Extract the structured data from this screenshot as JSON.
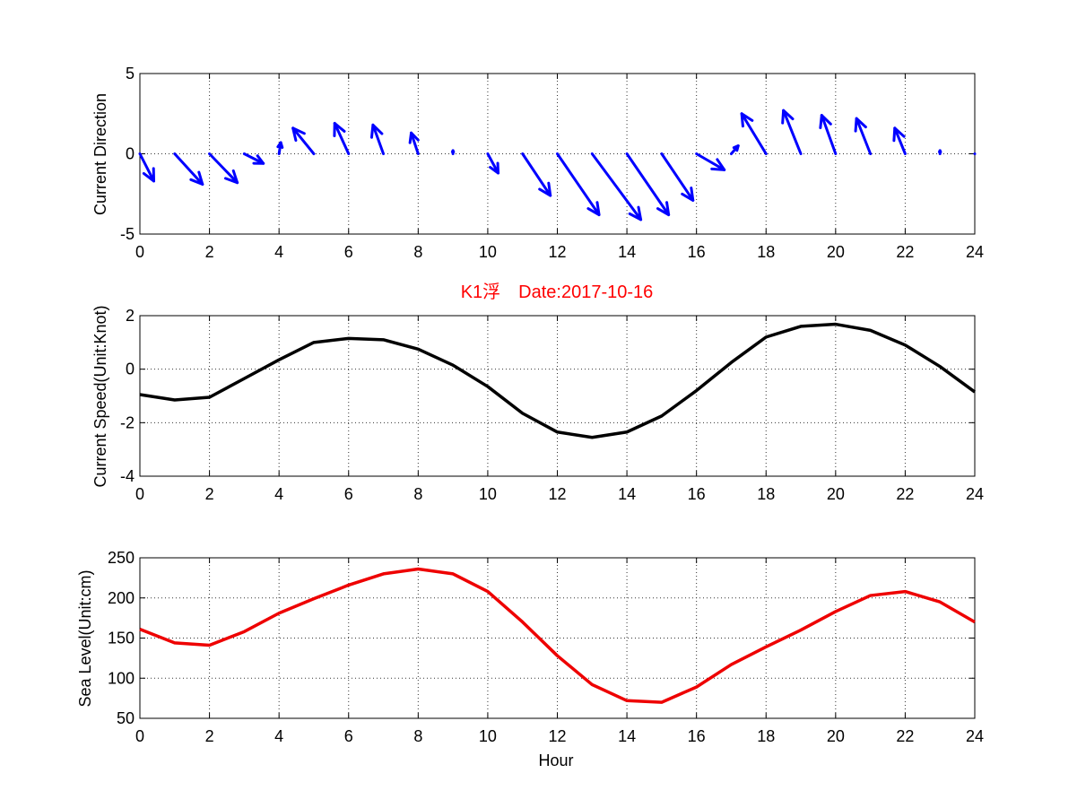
{
  "chart_data": [
    {
      "type": "quiver",
      "ylabel": "Current Direction",
      "xlim": [
        0,
        24
      ],
      "ylim": [
        -5,
        5
      ],
      "xticks": [
        "0",
        "2",
        "4",
        "6",
        "8",
        "10",
        "12",
        "14",
        "16",
        "18",
        "20",
        "22",
        "24"
      ],
      "yticks": [
        "5",
        "0",
        "-5"
      ],
      "grid": true,
      "color": "#0000ff",
      "x": [
        0,
        1,
        2,
        3,
        4,
        5,
        6,
        7,
        8,
        9,
        10,
        11,
        12,
        13,
        14,
        15,
        16,
        17,
        18,
        19,
        20,
        21,
        22,
        23,
        24
      ],
      "u": [
        0.4,
        0.8,
        0.8,
        0.55,
        0.05,
        -0.6,
        -0.4,
        -0.3,
        -0.2,
        0.0,
        0.3,
        0.8,
        1.2,
        1.4,
        1.2,
        0.9,
        0.8,
        0.2,
        -0.7,
        -0.5,
        -0.4,
        -0.4,
        -0.3,
        0.0,
        0.0
      ],
      "v": [
        -1.7,
        -1.9,
        -1.8,
        -0.6,
        0.7,
        1.6,
        1.9,
        1.8,
        1.3,
        0.2,
        -1.2,
        -2.6,
        -3.8,
        -4.1,
        -3.8,
        -2.9,
        -1.0,
        0.5,
        2.5,
        2.7,
        2.4,
        2.2,
        1.6,
        0.2,
        0.0
      ]
    },
    {
      "type": "line",
      "title": "K1浮　Date:2017-10-16",
      "title_color": "#ff0000",
      "ylabel": "Current Speed(Unit:Knot)",
      "xlim": [
        0,
        24
      ],
      "ylim": [
        -4,
        2
      ],
      "xticks": [
        "0",
        "2",
        "4",
        "6",
        "8",
        "10",
        "12",
        "14",
        "16",
        "18",
        "20",
        "22",
        "24"
      ],
      "yticks": [
        "2",
        "0",
        "-2",
        "-4"
      ],
      "grid": true,
      "color": "#000000",
      "x": [
        0,
        1,
        2,
        3,
        4,
        5,
        6,
        7,
        8,
        9,
        10,
        11,
        12,
        13,
        14,
        15,
        16,
        17,
        18,
        19,
        20,
        21,
        22,
        23,
        24
      ],
      "y": [
        -0.95,
        -1.15,
        -1.05,
        -0.35,
        0.35,
        1.0,
        1.15,
        1.1,
        0.75,
        0.15,
        -0.65,
        -1.65,
        -2.35,
        -2.55,
        -2.35,
        -1.75,
        -0.8,
        0.25,
        1.2,
        1.6,
        1.68,
        1.45,
        0.9,
        0.1,
        -0.85
      ]
    },
    {
      "type": "line",
      "ylabel": "Sea Level(Unit:cm)",
      "xlabel": "Hour",
      "xlim": [
        0,
        24
      ],
      "ylim": [
        50,
        250
      ],
      "xticks": [
        "0",
        "2",
        "4",
        "6",
        "8",
        "10",
        "12",
        "14",
        "16",
        "18",
        "20",
        "22",
        "24"
      ],
      "yticks": [
        "250",
        "200",
        "150",
        "100",
        "50"
      ],
      "grid": true,
      "color": "#ee0000",
      "x": [
        0,
        1,
        2,
        3,
        4,
        5,
        6,
        7,
        8,
        9,
        10,
        11,
        12,
        13,
        14,
        15,
        16,
        17,
        18,
        19,
        20,
        21,
        22,
        23,
        24
      ],
      "y": [
        161,
        144,
        141,
        158,
        181,
        199,
        216,
        230,
        236,
        230,
        208,
        170,
        128,
        92,
        72,
        70,
        89,
        117,
        139,
        160,
        183,
        203,
        208,
        195,
        170
      ]
    }
  ]
}
